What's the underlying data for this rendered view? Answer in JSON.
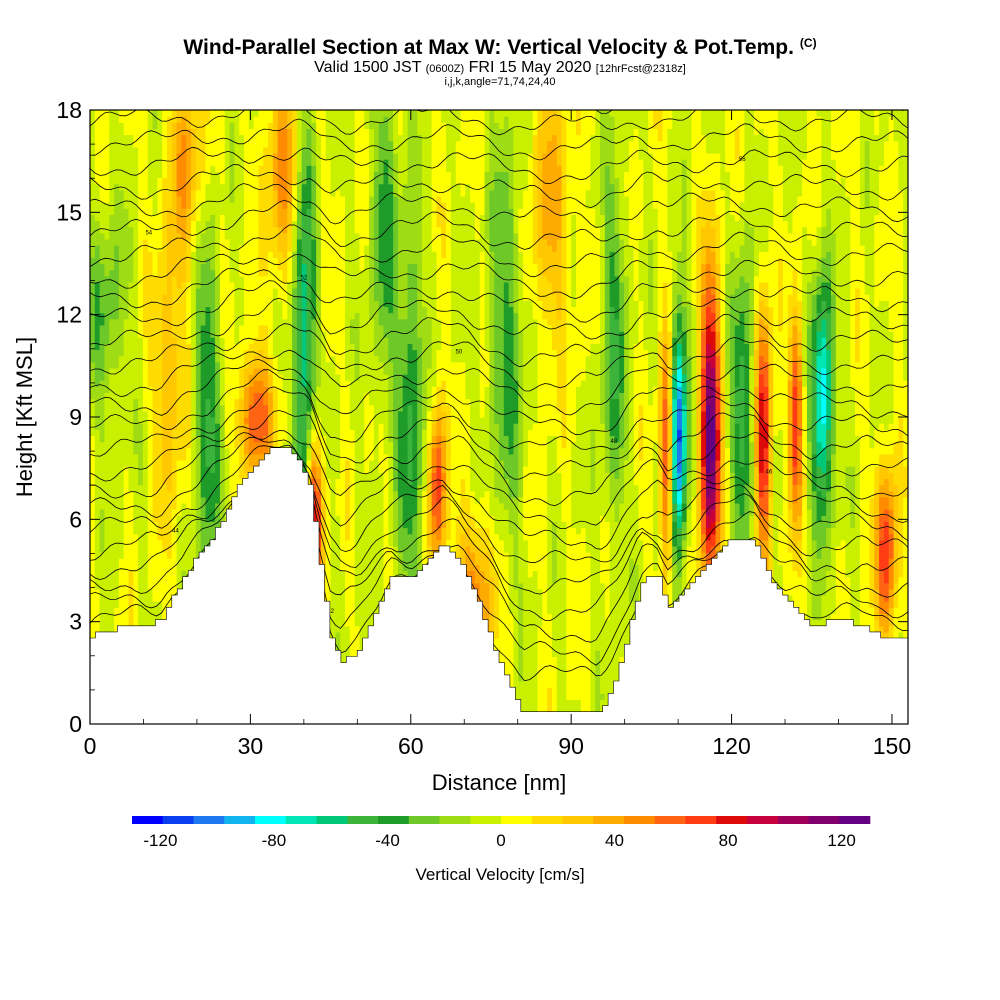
{
  "title": {
    "main": "Wind-Parallel Section at Max W: Vertical Velocity & Pot.Temp.",
    "mark": "(C)",
    "valid_a": "Valid 1500 JST",
    "valid_utc": "(0600Z)",
    "valid_b": "FRI 15 May 2020",
    "forecast": "[12hrFcst@2318z]",
    "indices": "i,j,k,angle=71,74,24,40"
  },
  "chart_data": {
    "type": "heatmap",
    "xlabel": "Distance [nm]",
    "ylabel": "Height [Kft MSL]",
    "xlim": [
      0,
      153
    ],
    "ylim": [
      0,
      18
    ],
    "xticks": [
      0,
      30,
      60,
      90,
      120,
      150
    ],
    "yticks": [
      0,
      3,
      6,
      9,
      12,
      15,
      18
    ],
    "colorbar": {
      "label": "Vertical Velocity [cm/s]",
      "ticks": [
        -120,
        -80,
        -40,
        0,
        40,
        80,
        120
      ],
      "range": [
        -130,
        130
      ],
      "colors": [
        "#0000ff",
        "#0a3cf0",
        "#1e78f0",
        "#12b4f0",
        "#00ffff",
        "#00e6b4",
        "#00c878",
        "#3cb43c",
        "#1e9b28",
        "#6ec828",
        "#a0dc14",
        "#c8f000",
        "#ffff00",
        "#ffdc00",
        "#ffc800",
        "#ffaa00",
        "#ff8c00",
        "#ff6414",
        "#ff3c14",
        "#dc0a0a",
        "#c8003c",
        "#a0005a",
        "#82006e",
        "#640082"
      ]
    },
    "terrain_kft": [
      [
        0,
        2.6
      ],
      [
        8,
        2.9
      ],
      [
        13,
        3.0
      ],
      [
        18,
        4.5
      ],
      [
        22,
        5.3
      ],
      [
        25,
        6.1
      ],
      [
        28,
        7.1
      ],
      [
        31,
        7.6
      ],
      [
        34,
        8.2
      ],
      [
        37,
        8.1
      ],
      [
        39,
        7.6
      ],
      [
        41,
        6.9
      ],
      [
        43,
        4.5
      ],
      [
        45,
        2.4
      ],
      [
        47,
        1.8
      ],
      [
        50,
        2.2
      ],
      [
        53,
        3.3
      ],
      [
        56,
        4.3
      ],
      [
        60,
        4.3
      ],
      [
        63,
        4.8
      ],
      [
        66,
        5.3
      ],
      [
        69,
        4.8
      ],
      [
        72,
        3.7
      ],
      [
        75,
        2.4
      ],
      [
        78,
        1.2
      ],
      [
        81,
        0.3
      ],
      [
        85,
        0.3
      ],
      [
        95,
        0.3
      ],
      [
        98,
        1.3
      ],
      [
        101,
        3.0
      ],
      [
        103,
        4.2
      ],
      [
        106,
        4.3
      ],
      [
        108,
        3.4
      ],
      [
        110,
        3.8
      ],
      [
        113,
        4.3
      ],
      [
        116,
        4.9
      ],
      [
        119,
        5.4
      ],
      [
        122,
        5.5
      ],
      [
        124,
        5.3
      ],
      [
        127,
        4.3
      ],
      [
        130,
        3.6
      ],
      [
        133,
        3.2
      ],
      [
        135,
        2.8
      ],
      [
        138,
        3.0
      ],
      [
        141,
        3.0
      ],
      [
        145,
        2.9
      ],
      [
        147,
        2.6
      ],
      [
        153,
        2.6
      ]
    ],
    "features": [
      {
        "x": 22,
        "y": 9.0,
        "w": -45,
        "sx": 2.5,
        "sy": 5
      },
      {
        "x": 40,
        "y": 11.0,
        "w": -70,
        "sx": 2.0,
        "sy": 6
      },
      {
        "x": 60,
        "y": 9.0,
        "w": -45,
        "sx": 2.5,
        "sy": 6
      },
      {
        "x": 78,
        "y": 11.5,
        "w": -35,
        "sx": 3.5,
        "sy": 6
      },
      {
        "x": 98,
        "y": 11.0,
        "w": -40,
        "sx": 2.5,
        "sy": 5
      },
      {
        "x": 110,
        "y": 8.5,
        "w": -120,
        "sx": 1.6,
        "sy": 3.5
      },
      {
        "x": 122,
        "y": 9.5,
        "w": -55,
        "sx": 2.0,
        "sy": 4
      },
      {
        "x": 137,
        "y": 9.5,
        "w": -90,
        "sx": 2.0,
        "sy": 3.5
      },
      {
        "x": 108,
        "y": 8.0,
        "w": 85,
        "sx": 1.3,
        "sy": 3.5
      },
      {
        "x": 116,
        "y": 8.5,
        "w": 130,
        "sx": 1.8,
        "sy": 4.5
      },
      {
        "x": 126,
        "y": 8.5,
        "w": 90,
        "sx": 1.5,
        "sy": 3.5
      },
      {
        "x": 132,
        "y": 9.0,
        "w": 75,
        "sx": 1.3,
        "sy": 3
      },
      {
        "x": 149,
        "y": 5.0,
        "w": 75,
        "sx": 2.0,
        "sy": 2.5
      },
      {
        "x": 42,
        "y": 6.0,
        "w": 95,
        "sx": 1.5,
        "sy": 2.5
      },
      {
        "x": 65,
        "y": 7.0,
        "w": 75,
        "sx": 1.5,
        "sy": 2.5
      },
      {
        "x": 31,
        "y": 9.0,
        "w": 70,
        "sx": 3.0,
        "sy": 1.8
      },
      {
        "x": 15,
        "y": 10.5,
        "w": 35,
        "sx": 3.0,
        "sy": 4
      },
      {
        "x": 72,
        "y": 3.5,
        "w": 55,
        "sx": 3.5,
        "sy": 2.5
      },
      {
        "x": 36,
        "y": 16.0,
        "w": 45,
        "sx": 3.0,
        "sy": 3
      },
      {
        "x": 18,
        "y": 16.5,
        "w": 40,
        "sx": 3.0,
        "sy": 2.5
      },
      {
        "x": 86,
        "y": 15.0,
        "w": 35,
        "sx": 4.0,
        "sy": 4
      },
      {
        "x": 55,
        "y": 14.5,
        "w": -35,
        "sx": 2.5,
        "sy": 5
      },
      {
        "x": 3,
        "y": 12.0,
        "w": -30,
        "sx": 4.0,
        "sy": 3
      }
    ],
    "theta_labels": [
      "42",
      "44",
      "46",
      "48",
      "50",
      "52",
      "54",
      "56",
      "58",
      "60"
    ]
  }
}
